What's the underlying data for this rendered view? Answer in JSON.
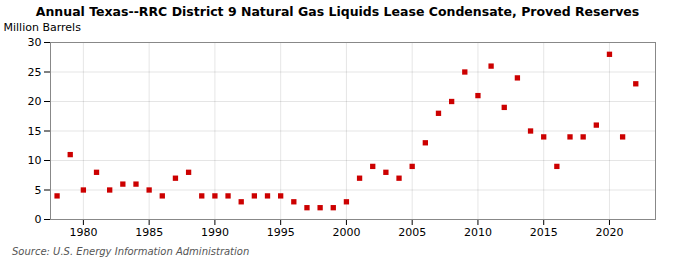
{
  "chart_data": {
    "type": "scatter",
    "title": "Annual Texas--RRC District 9 Natural Gas Liquids Lease Condensate, Proved Reserves",
    "ylabel": "Million Barrels",
    "annotation": "Source: U.S. Energy Information Administration",
    "color": "#cc0000",
    "marker": "square",
    "x": [
      1978,
      1979,
      1980,
      1981,
      1982,
      1983,
      1984,
      1985,
      1986,
      1987,
      1988,
      1989,
      1990,
      1991,
      1992,
      1993,
      1994,
      1995,
      1996,
      1997,
      1998,
      1999,
      2000,
      2001,
      2002,
      2003,
      2004,
      2005,
      2006,
      2007,
      2008,
      2009,
      2010,
      2011,
      2012,
      2013,
      2014,
      2015,
      2016,
      2017,
      2018,
      2019,
      2020,
      2021,
      2022
    ],
    "values": [
      4.0,
      11.0,
      5.0,
      8.0,
      5.0,
      6.0,
      6.0,
      5.0,
      4.0,
      7.0,
      8.0,
      4.0,
      4.0,
      4.0,
      3.0,
      4.0,
      4.0,
      4.0,
      3.0,
      2.0,
      2.0,
      2.0,
      3.0,
      7.0,
      9.0,
      8.0,
      7.0,
      9.0,
      13.0,
      18.0,
      20.0,
      25.0,
      21.0,
      26.0,
      19.0,
      24.0,
      15.0,
      14.0,
      9.0,
      14.0,
      14.0,
      16.0,
      28.0,
      14.0,
      23.0
    ],
    "xlim": [
      1977.5,
      2023.5
    ],
    "ylim": [
      0,
      30
    ],
    "xticks": [
      1980,
      1985,
      1990,
      1995,
      2000,
      2005,
      2010,
      2015,
      2020
    ],
    "yticks": [
      0,
      5,
      10,
      15,
      20,
      25,
      30
    ],
    "grid": true
  }
}
